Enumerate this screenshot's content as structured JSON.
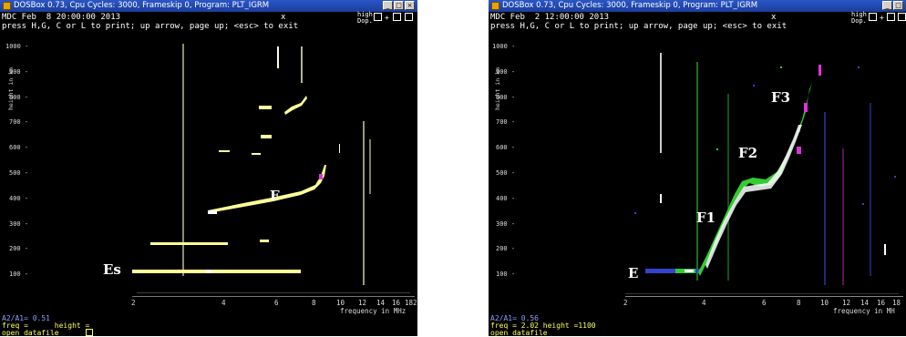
{
  "windows": [
    {
      "title": "DOSBox 0.73, Cpu Cycles:     3000, Frameskip  0, Program: PLT_IGRM",
      "header_line": "MDC Feb  8 20:00:00 2013",
      "cursor_mark": "x",
      "instructions": "press H,G, C or L to print; up arrow, page up; <esc> to exit",
      "high_label": "high",
      "dop_label": "Dop.",
      "plus_label": "+",
      "y_label": "height in km",
      "y_ticks": [
        "1000 -",
        "900 -",
        "800 -",
        "700 -",
        "600 -",
        "500 -",
        "400 -",
        "300 -",
        "200 -",
        "100 -"
      ],
      "x_ticks": [
        "2",
        "4",
        "6",
        "8",
        "10",
        "12",
        "14",
        "16",
        "18",
        "2"
      ],
      "x_label": "frequency in MHz",
      "labels": [
        "Es",
        "F"
      ],
      "ratio": "A2/A1= 0.51",
      "freq_line": "freq =      height =",
      "open_line": "open datafile"
    },
    {
      "title": "DOSBox 0.73, Cpu Cycles:     3000, Frameskip  0, Program: PLT_IGRM",
      "header_line": "MDC Feb  2 12:00:00 2013",
      "cursor_mark": "x",
      "instructions": "press H,G, C or L to print; up arrow, page up; <esc> to exit",
      "high_label": "high",
      "dop_label": "Dop.",
      "plus_label": "+",
      "y_label": "height in km",
      "y_ticks": [
        "1000 -",
        "900 -",
        "800 -",
        "700 -",
        "600 -",
        "500 -",
        "400 -",
        "300 -",
        "200 -",
        "100 -"
      ],
      "x_ticks": [
        "2",
        "4",
        "6",
        "8",
        "10",
        "12",
        "14",
        "16",
        "18"
      ],
      "x_label": "frequency in MH",
      "labels": [
        "E",
        "F1",
        "F2",
        "F3"
      ],
      "ratio": "A2/A1= 0.56",
      "freq_line": "freq = 2.02 height =1100",
      "open_line": "open datafile"
    }
  ],
  "colors": {
    "titlebar": "#2a56c6",
    "background": "#000000",
    "trace_yellow": "#ffff99",
    "trace_green": "#33cc33",
    "trace_magenta": "#dd33dd",
    "trace_blue": "#3344cc",
    "status_blue": "#8fa0ff"
  }
}
